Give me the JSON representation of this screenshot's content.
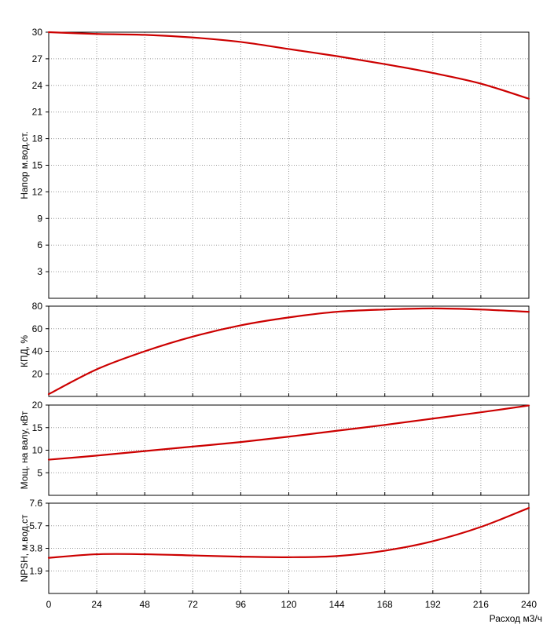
{
  "chart_data": {
    "type": "line",
    "xlabel": "Расход м3/ч",
    "x_ticks": [
      0,
      24,
      48,
      72,
      96,
      120,
      144,
      168,
      192,
      216,
      240
    ],
    "xlim": [
      0,
      240
    ],
    "grid": true,
    "panels": [
      {
        "ylabel": "Напор м.вод.ст.",
        "ylim": [
          0,
          30
        ],
        "y_ticks": [
          3,
          6,
          9,
          12,
          15,
          18,
          21,
          24,
          27,
          30
        ],
        "y_tick_labels": [
          "3",
          "6",
          "9",
          "12",
          "15",
          "18",
          "21",
          "24",
          "27",
          "30"
        ],
        "series": [
          {
            "x": [
              0,
              24,
              48,
              72,
              96,
              120,
              144,
              168,
              192,
              216,
              240
            ],
            "y": [
              30.0,
              29.8,
              29.7,
              29.4,
              28.9,
              28.1,
              27.3,
              26.4,
              25.4,
              24.2,
              22.5
            ]
          }
        ]
      },
      {
        "ylabel": "КПД, %",
        "ylim": [
          0,
          80
        ],
        "y_ticks": [
          20,
          40,
          60,
          80
        ],
        "y_tick_labels": [
          "20",
          "40",
          "60",
          "80"
        ],
        "series": [
          {
            "x": [
              0,
              24,
              48,
              72,
              96,
              120,
              144,
              168,
              192,
              216,
              240
            ],
            "y": [
              2,
              24,
              40,
              53,
              63,
              70,
              75,
              77,
              78,
              77,
              75
            ]
          }
        ]
      },
      {
        "ylabel": "Мощ. на валу, кВт",
        "ylim": [
          0,
          20
        ],
        "y_ticks": [
          5,
          10,
          15,
          20
        ],
        "y_tick_labels": [
          "5",
          "10",
          "15",
          "20"
        ],
        "series": [
          {
            "x": [
              0,
              24,
              48,
              72,
              96,
              120,
              144,
              168,
              192,
              216,
              240
            ],
            "y": [
              7.9,
              8.8,
              9.8,
              10.8,
              11.8,
              13.0,
              14.3,
              15.6,
              17.0,
              18.4,
              19.9
            ]
          }
        ]
      },
      {
        "ylabel": "NPSH, м.вод.ст",
        "ylim": [
          0,
          7.6
        ],
        "y_ticks": [
          1.9,
          3.8,
          5.7,
          7.6
        ],
        "y_tick_labels": [
          "1.9",
          "3.8",
          "5.7",
          "7.6"
        ],
        "series": [
          {
            "x": [
              0,
              24,
              48,
              72,
              96,
              120,
              144,
              168,
              192,
              216,
              240
            ],
            "y": [
              3.0,
              3.3,
              3.3,
              3.2,
              3.1,
              3.05,
              3.15,
              3.6,
              4.4,
              5.6,
              7.2
            ]
          }
        ]
      }
    ]
  }
}
